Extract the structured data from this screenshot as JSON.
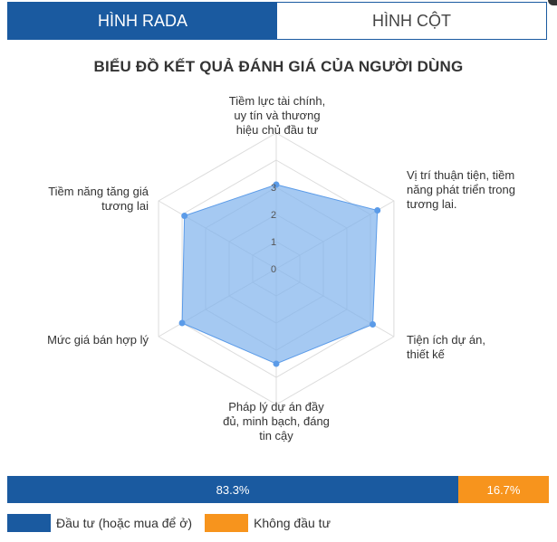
{
  "tabs": [
    {
      "label": "HÌNH RADA",
      "active": true
    },
    {
      "label": "HÌNH CỘT",
      "active": false
    }
  ],
  "chart_data": {
    "type": "radar",
    "title": "BIỂU ĐỒ KẾT QUẢ ĐÁNH GIÁ CỦA NGƯỜI DÙNG",
    "scale_ticks": [
      "0",
      "1",
      "2",
      "3"
    ],
    "rmax": 5,
    "axes": [
      "Tiềm lực tài chính, uy tín và thương hiệu chủ đầu tư",
      "Vị trí thuận tiện, tiềm năng phát triển trong tương lai.",
      "Tiện ích dự án, thiết kế",
      "Pháp lý dự án đầy đủ, minh bạch, đáng tin cậy",
      "Mức giá bán hợp lý",
      "Tiềm năng tăng giá tương lai"
    ],
    "values": [
      3.1,
      4.3,
      4.1,
      3.5,
      4.0,
      3.9
    ],
    "fill_color": "#7fb2ec",
    "point_color": "#5b9be8"
  },
  "distribution": {
    "segments": [
      {
        "label": "83.3%",
        "value": 83.3,
        "color": "#1a5aa0"
      },
      {
        "label": "16.7%",
        "value": 16.7,
        "color": "#f7941d"
      }
    ],
    "legend": [
      {
        "label": "Đầu tư (hoặc mua để ở)",
        "color": "#1a5aa0"
      },
      {
        "label": "Không đầu tư",
        "color": "#f7941d"
      }
    ]
  }
}
